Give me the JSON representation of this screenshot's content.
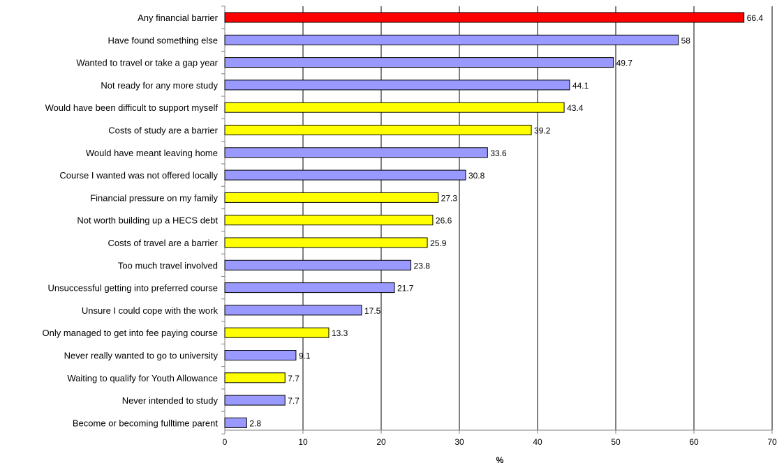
{
  "chart_data": {
    "type": "bar",
    "orientation": "horizontal",
    "title": "",
    "xlabel": "%",
    "ylabel": "",
    "xlim": [
      0,
      70
    ],
    "x_ticks": [
      0,
      10,
      20,
      30,
      40,
      50,
      60,
      70
    ],
    "grid": "vertical gridlines on",
    "legend": "none",
    "categories": [
      "Any financial barrier",
      "Have found something else",
      "Wanted to travel or take a gap year",
      "Not ready for any more study",
      "Would have been difficult to support myself",
      "Costs of study are a barrier",
      "Would have meant leaving home",
      "Course I wanted was not offered locally",
      "Financial pressure on my family",
      "Not worth building up a HECS debt",
      "Costs of travel are a barrier",
      "Too much travel involved",
      "Unsuccessful getting into preferred course",
      "Unsure I could cope with the work",
      "Only managed to get into fee paying course",
      "Never really wanted to go to university",
      "Waiting to qualify for Youth Allowance",
      "Never intended to study",
      "Become or becoming fulltime parent"
    ],
    "values": [
      66.4,
      58,
      49.7,
      44.1,
      43.4,
      39.2,
      33.6,
      30.8,
      27.3,
      26.6,
      25.9,
      23.8,
      21.7,
      17.5,
      13.3,
      9.1,
      7.7,
      7.7,
      2.8
    ],
    "value_labels": [
      "66.4",
      "58",
      "49.7",
      "44.1",
      "43.4",
      "39.2",
      "33.6",
      "30.8",
      "27.3",
      "26.6",
      "25.9",
      "23.8",
      "21.7",
      "17.5",
      "13.3",
      "9.1",
      "7.7",
      "7.7",
      "2.8"
    ],
    "bar_color_groups": [
      "summary",
      "other",
      "other",
      "other",
      "financial",
      "financial",
      "other",
      "other",
      "financial",
      "financial",
      "financial",
      "other",
      "other",
      "other",
      "financial",
      "other",
      "financial",
      "other",
      "other"
    ],
    "colors": {
      "summary": "#ff0000",
      "other": "#9999ff",
      "financial": "#ffff00",
      "bar_stroke": "#000000",
      "grid": "#000000",
      "axis": "#808080"
    }
  }
}
